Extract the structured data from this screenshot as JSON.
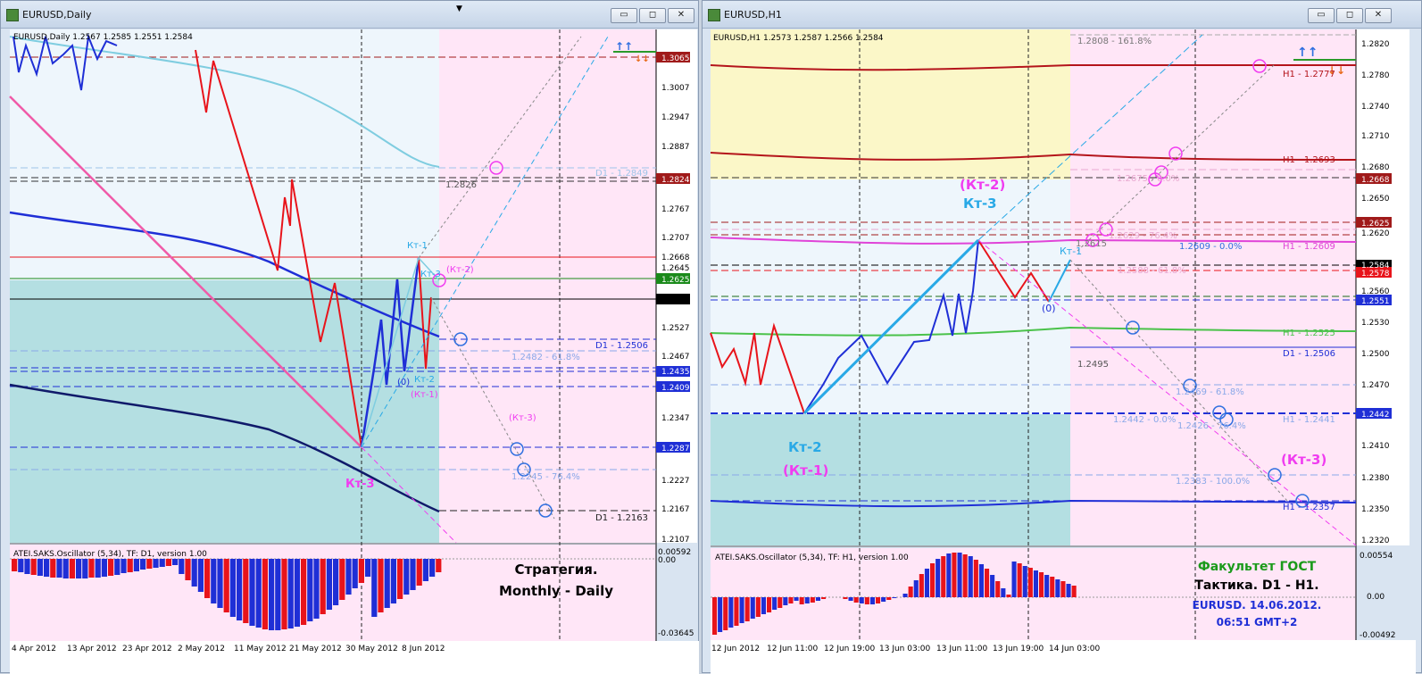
{
  "left": {
    "title": "EURUSD,Daily",
    "header": "EURUSD,Daily  1.2567 1.2585 1.2551 1.2584",
    "buttons": {
      "minimize": "▭",
      "restore": "◻",
      "close": "✕"
    },
    "price_labels": [
      "1.3065",
      "1.3007",
      "1.2947",
      "1.2887",
      "1.2824",
      "1.2767",
      "1.2707",
      "1.2668",
      "1.2645",
      "1.2625",
      "1.2584",
      "1.2527",
      "1.2467",
      "1.2435",
      "1.2409",
      "1.2347",
      "1.2287",
      "1.2227",
      "1.2167",
      "1.2107"
    ],
    "line_labels": {
      "d1_1": "D1 - 1.2849",
      "l2826": "1.2826",
      "d1_2": "D1 - 1.2506",
      "fib618": "1.2482 - 61.8%",
      "fib764": "1.2245 - 76.4%",
      "d1_3": "D1 - 1.2163"
    },
    "wave_labels": {
      "kt1": "Кт-1",
      "kt2": "Кт-2",
      "kt3a": "Кт-3",
      "kt2p": "(Кт-2)",
      "kt1p": "(Кт-1)",
      "kt3p": "(Кт-3)",
      "zero": "(0)",
      "kt3": "Кт-3"
    },
    "strategy1": "Стратегия.",
    "strategy2": "Monthly - Daily",
    "osc_header": "ATEI.SAKS.Oscillator (5,34), TF: D1, version 1.00",
    "osc_scale": [
      "0.00592",
      "0.00",
      "-0.03645"
    ],
    "dates": [
      "4 Apr 2012",
      "13 Apr 2012",
      "23 Apr 2012",
      "2 May 2012",
      "11 May 2012",
      "21 May 2012",
      "30 May 2012",
      "8 Jun 2012"
    ]
  },
  "right": {
    "title": "EURUSD,H1",
    "header": "EURUSD,H1  1.2573 1.2587 1.2566 1.2584",
    "buttons": {
      "minimize": "▭",
      "restore": "◻",
      "close": "✕"
    },
    "price_labels": [
      "1.2820",
      "1.2780",
      "1.2740",
      "1.2710",
      "1.2680",
      "1.2668",
      "1.2650",
      "1.2625",
      "1.2620",
      "1.2584",
      "1.2578",
      "1.2560",
      "1.2551",
      "1.2530",
      "1.2500",
      "1.2470",
      "1.2442",
      "1.2410",
      "1.2380",
      "1.2350",
      "1.2320"
    ],
    "line_labels": {
      "f1618": "1.2808 - 161.8%",
      "h1_2777": "H1 - 1.2777",
      "h1_2693": "H1 - 1.2693",
      "f2675": "1.2675 - 0.0%",
      "f2629": "1.2629 - 76.4%",
      "l2615": "1.2615",
      "h1_2609": "H1 - 1.2609",
      "f2609": "1.2609 - 0.0%",
      "f2588": "1.2588 - 61.8%",
      "h1_2525": "H1 - 1.2525",
      "d1_2506": "D1 - 1.2506",
      "l2495": "1.2495",
      "f2469": "1.2469 - 61.8%",
      "f2442": "1.2442 - 0.0%",
      "h1_2441": "H1 - 1.2441",
      "f2426": "1.2426 - 76.4%",
      "f2383": "1.2383 - 100.0%",
      "h1_2357": "H1 - 1.2357"
    },
    "wave_labels": {
      "kt2p": "(Кт-2)",
      "kt3": "Кт-3",
      "kt1": "Кт-1",
      "zero": "(0)",
      "kt2": "Кт-2",
      "kt1p": "(Кт-1)",
      "kt3p": "(Кт-3)"
    },
    "faculty": "Факультет ГОСТ",
    "tactic": "Тактика. D1 - H1.",
    "symdate": "EURUSD. 14.06.2012.",
    "time": "06:51  GMT+2",
    "osc_header": "ATEI.SAKS.Oscillator (5,34), TF: H1, version 1.00",
    "osc_scale": [
      "0.00554",
      "0.00",
      "-0.00492"
    ],
    "dates": [
      "12 Jun 2012",
      "12 Jun 11:00",
      "12 Jun 19:00",
      "13 Jun 03:00",
      "13 Jun 11:00",
      "13 Jun 19:00",
      "14 Jun 03:00"
    ]
  },
  "colors": {
    "pink_bg": "#ffe6f7",
    "light_blue_bg": "#eef6fc",
    "teal_bg": "#b4dfe2",
    "yellow_bg": "#fbf7c8",
    "red": "#e8141b",
    "blue": "#1f2fd6",
    "magenta": "#f03cf0",
    "cyan": "#29a9e6"
  }
}
